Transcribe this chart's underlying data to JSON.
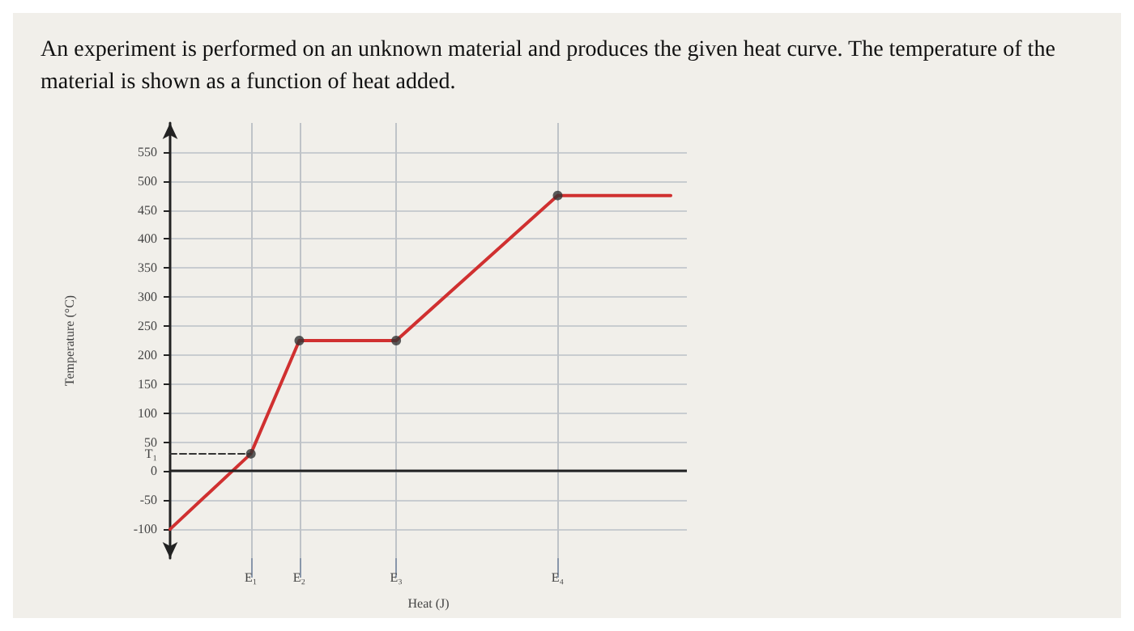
{
  "chart_data": {
    "type": "line",
    "title": "An experiment is performed on an unknown material and produces the given heat curve. The temperature of the material is shown as a function of heat added.",
    "xlabel": "Heat (J)",
    "ylabel": "Temperature (°C)",
    "categories": [
      null,
      null,
      null,
      null,
      null,
      "E₁",
      null,
      null,
      "E₂",
      null,
      null,
      null,
      null,
      null,
      "E₃",
      null,
      null,
      null,
      null,
      null,
      null,
      null,
      null,
      null,
      "E₄",
      null,
      null,
      null,
      null,
      null,
      null,
      null,
      null
    ],
    "ylim": [
      -150,
      600
    ],
    "yticks": [
      -100,
      -50,
      0,
      50,
      100,
      150,
      200,
      250,
      300,
      350,
      400,
      450,
      500,
      550
    ],
    "grid": true,
    "ref_lines": [
      {
        "axis": "y",
        "value": 0,
        "color": "#222222"
      }
    ],
    "series": [
      {
        "color": "#d03030",
        "values": [
          -100,
          null,
          null,
          null,
          null,
          30,
          null,
          null,
          225,
          null,
          null,
          null,
          null,
          null,
          225,
          null,
          null,
          null,
          null,
          null,
          null,
          null,
          null,
          null,
          475,
          null,
          null,
          null,
          null,
          null,
          null,
          475,
          null
        ],
        "marker": "none",
        "line_style": "solid"
      },
      {
        "name": "T₁",
        "color": "#333333",
        "values": [
          30,
          null,
          null,
          null,
          null,
          30,
          null,
          null,
          null,
          null,
          null,
          null,
          null,
          null,
          null,
          null,
          null,
          null,
          null,
          null,
          null,
          null,
          null,
          null,
          null,
          null,
          null,
          null,
          null,
          null,
          null,
          null,
          null
        ],
        "marker": "none",
        "line_style": "dashed"
      },
      {
        "type": "scatter",
        "color": "#333333",
        "values": [
          null,
          null,
          null,
          null,
          null,
          30,
          null,
          null,
          225,
          null,
          null,
          null,
          null,
          null,
          225,
          null,
          null,
          null,
          null,
          null,
          null,
          null,
          null,
          null,
          475,
          null,
          null,
          null,
          null,
          null,
          null,
          null,
          null
        ],
        "marker": "circle"
      }
    ]
  }
}
